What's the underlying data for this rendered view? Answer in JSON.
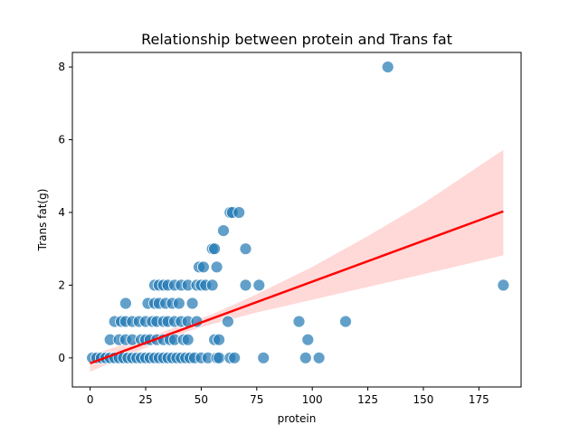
{
  "chart_data": {
    "type": "scatter",
    "title": "Relationship between protein and Trans fat",
    "xlabel": "protein",
    "ylabel": "Trans fat(g)",
    "xlim": [
      -8,
      194
    ],
    "ylim": [
      -0.8,
      8.4
    ],
    "xticks": [
      0,
      25,
      50,
      75,
      100,
      125,
      150,
      175
    ],
    "yticks": [
      0,
      2,
      4,
      6,
      8
    ],
    "grid": false,
    "colors": {
      "points": "#1f77b4",
      "regression": "#ff0000",
      "band": "#ff9999"
    },
    "regression": {
      "x": [
        0,
        186
      ],
      "y": [
        -0.15,
        4.03
      ],
      "ci_x": [
        0,
        25,
        45,
        55,
        75,
        100,
        125,
        150,
        186
      ],
      "ci_lower": [
        -0.38,
        0.28,
        0.75,
        0.93,
        1.25,
        1.6,
        1.95,
        2.3,
        2.82
      ],
      "ci_upper": [
        0.08,
        0.55,
        0.98,
        1.2,
        1.75,
        2.5,
        3.35,
        4.25,
        5.72
      ]
    },
    "points": [
      [
        1,
        0
      ],
      [
        3,
        0
      ],
      [
        5,
        0
      ],
      [
        7,
        0
      ],
      [
        9,
        0
      ],
      [
        11,
        0
      ],
      [
        13,
        0
      ],
      [
        15,
        0
      ],
      [
        17,
        0
      ],
      [
        19,
        0
      ],
      [
        21,
        0
      ],
      [
        23,
        0
      ],
      [
        25,
        0
      ],
      [
        27,
        0
      ],
      [
        29,
        0
      ],
      [
        31,
        0
      ],
      [
        33,
        0
      ],
      [
        35,
        0
      ],
      [
        37,
        0
      ],
      [
        39,
        0
      ],
      [
        41,
        0
      ],
      [
        43,
        0
      ],
      [
        45,
        0
      ],
      [
        47,
        0
      ],
      [
        50,
        0
      ],
      [
        53,
        0
      ],
      [
        57,
        0
      ],
      [
        58,
        0
      ],
      [
        63,
        0
      ],
      [
        65,
        0
      ],
      [
        78,
        0
      ],
      [
        97,
        0
      ],
      [
        103,
        0
      ],
      [
        9,
        0.5
      ],
      [
        13,
        0.5
      ],
      [
        16,
        0.5
      ],
      [
        19,
        0.5
      ],
      [
        23,
        0.5
      ],
      [
        25,
        0.5
      ],
      [
        27,
        0.5
      ],
      [
        30,
        0.5
      ],
      [
        33,
        0.5
      ],
      [
        36,
        0.5
      ],
      [
        38,
        0.5
      ],
      [
        42,
        0.5
      ],
      [
        44,
        0.5
      ],
      [
        56,
        0.5
      ],
      [
        58,
        0.5
      ],
      [
        98,
        0.5
      ],
      [
        11,
        1
      ],
      [
        14,
        1
      ],
      [
        16,
        1
      ],
      [
        19,
        1
      ],
      [
        22,
        1
      ],
      [
        25,
        1
      ],
      [
        28,
        1
      ],
      [
        30,
        1
      ],
      [
        33,
        1
      ],
      [
        35,
        1
      ],
      [
        38,
        1
      ],
      [
        41,
        1
      ],
      [
        44,
        1
      ],
      [
        48,
        1
      ],
      [
        62,
        1
      ],
      [
        94,
        1
      ],
      [
        115,
        1
      ],
      [
        16,
        1.5
      ],
      [
        26,
        1.5
      ],
      [
        29,
        1.5
      ],
      [
        31,
        1.5
      ],
      [
        34,
        1.5
      ],
      [
        37,
        1.5
      ],
      [
        40,
        1.5
      ],
      [
        46,
        1.5
      ],
      [
        29,
        2
      ],
      [
        31,
        2
      ],
      [
        33,
        2
      ],
      [
        35,
        2
      ],
      [
        38,
        2
      ],
      [
        41,
        2
      ],
      [
        44,
        2
      ],
      [
        48,
        2
      ],
      [
        50,
        2
      ],
      [
        52,
        2
      ],
      [
        55,
        2
      ],
      [
        70,
        2
      ],
      [
        76,
        2
      ],
      [
        186,
        2
      ],
      [
        49,
        2.5
      ],
      [
        51,
        2.5
      ],
      [
        57,
        2.5
      ],
      [
        55,
        3
      ],
      [
        56,
        3
      ],
      [
        70,
        3
      ],
      [
        60,
        3.5
      ],
      [
        63,
        4
      ],
      [
        64,
        4
      ],
      [
        67,
        4
      ],
      [
        134,
        8
      ]
    ]
  }
}
